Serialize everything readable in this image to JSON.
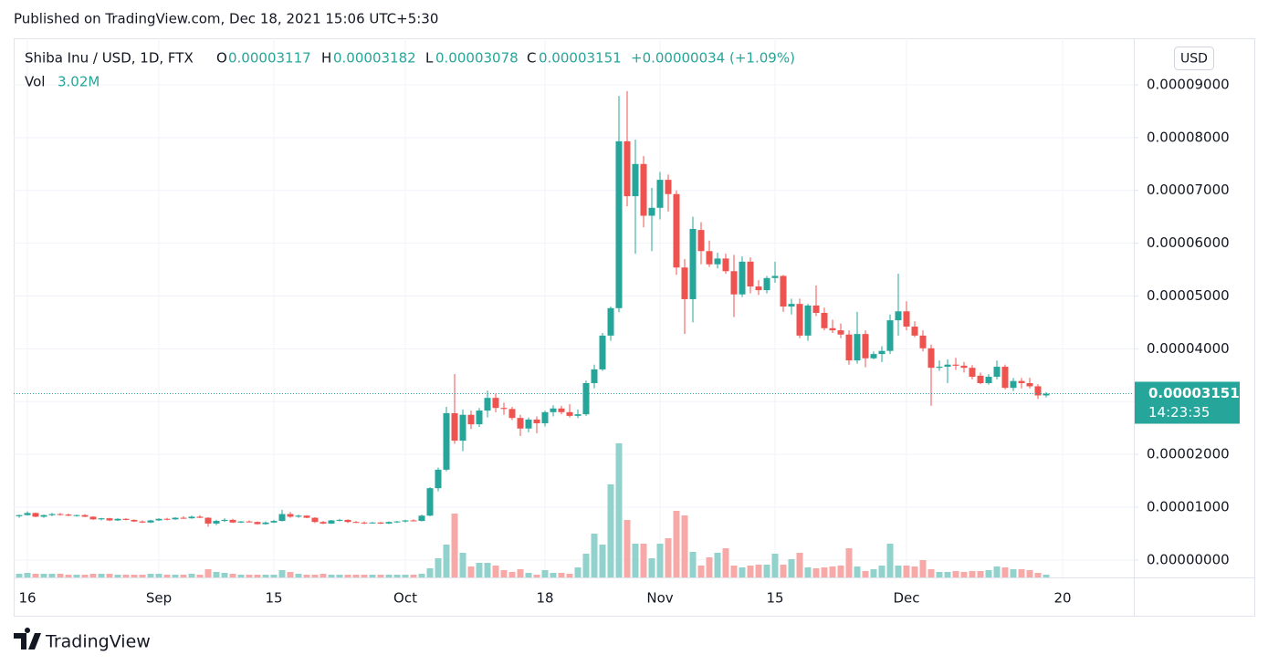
{
  "chart_data": {
    "type": "candlestick",
    "published": "Published on TradingView.com, Dec 18, 2021 15:06 UTC+5:30",
    "brand": "TradingView",
    "currency": "USD",
    "countdown": "14:23:35",
    "legend": {
      "symbol": "Shiba Inu / USD, 1D, FTX",
      "open": "O",
      "high": "H",
      "low": "L",
      "close": "C",
      "change": "+0.00000034 (+1.09%)"
    },
    "up_color": "#26a69a",
    "down_color": "#ef5350",
    "volume_up_color": "#92d2cc",
    "volume_down_color": "#f7a9a7",
    "grid": true,
    "ylim": [
      -3.3e-06,
      9.88e-05
    ],
    "yticks": [
      {
        "value": 0,
        "label": "0.00000000"
      },
      {
        "value": 1e-05,
        "label": "0.00001000"
      },
      {
        "value": 2e-05,
        "label": "0.00002000"
      },
      {
        "value": 3e-05,
        "label": "0.00003000"
      },
      {
        "value": 4e-05,
        "label": "0.00004000"
      },
      {
        "value": 5e-05,
        "label": "0.00005000"
      },
      {
        "value": 6e-05,
        "label": "0.00006000"
      },
      {
        "value": 7e-05,
        "label": "0.00007000"
      },
      {
        "value": 8e-05,
        "label": "0.00008000"
      },
      {
        "value": 9e-05,
        "label": "0.00009000"
      }
    ],
    "xlim": [
      "2021-08-14",
      "2021-12-29"
    ],
    "xticks": [
      {
        "value": "2021-08-16",
        "label": "16"
      },
      {
        "value": "2021-09-01",
        "label": "Sep"
      },
      {
        "value": "2021-09-15",
        "label": "15"
      },
      {
        "value": "2021-10-01",
        "label": "Oct"
      },
      {
        "value": "2021-10-18",
        "label": "18"
      },
      {
        "value": "2021-11-01",
        "label": "Nov"
      },
      {
        "value": "2021-11-15",
        "label": "15"
      },
      {
        "value": "2021-12-01",
        "label": "Dec"
      },
      {
        "value": "2021-12-20",
        "label": "20"
      }
    ],
    "x": [
      "2021-08-15",
      "2021-08-16",
      "2021-08-17",
      "2021-08-18",
      "2021-08-19",
      "2021-08-20",
      "2021-08-21",
      "2021-08-22",
      "2021-08-23",
      "2021-08-24",
      "2021-08-25",
      "2021-08-26",
      "2021-08-27",
      "2021-08-28",
      "2021-08-29",
      "2021-08-30",
      "2021-08-31",
      "2021-09-01",
      "2021-09-02",
      "2021-09-03",
      "2021-09-04",
      "2021-09-05",
      "2021-09-06",
      "2021-09-07",
      "2021-09-08",
      "2021-09-09",
      "2021-09-10",
      "2021-09-11",
      "2021-09-12",
      "2021-09-13",
      "2021-09-14",
      "2021-09-15",
      "2021-09-16",
      "2021-09-17",
      "2021-09-18",
      "2021-09-19",
      "2021-09-20",
      "2021-09-21",
      "2021-09-22",
      "2021-09-23",
      "2021-09-24",
      "2021-09-25",
      "2021-09-26",
      "2021-09-27",
      "2021-09-28",
      "2021-09-29",
      "2021-09-30",
      "2021-10-01",
      "2021-10-02",
      "2021-10-03",
      "2021-10-04",
      "2021-10-05",
      "2021-10-06",
      "2021-10-07",
      "2021-10-08",
      "2021-10-09",
      "2021-10-10",
      "2021-10-11",
      "2021-10-12",
      "2021-10-13",
      "2021-10-14",
      "2021-10-15",
      "2021-10-16",
      "2021-10-17",
      "2021-10-18",
      "2021-10-19",
      "2021-10-20",
      "2021-10-21",
      "2021-10-22",
      "2021-10-23",
      "2021-10-24",
      "2021-10-25",
      "2021-10-26",
      "2021-10-27",
      "2021-10-28",
      "2021-10-29",
      "2021-10-30",
      "2021-10-31",
      "2021-11-01",
      "2021-11-02",
      "2021-11-03",
      "2021-11-04",
      "2021-11-05",
      "2021-11-06",
      "2021-11-07",
      "2021-11-08",
      "2021-11-09",
      "2021-11-10",
      "2021-11-11",
      "2021-11-12",
      "2021-11-13",
      "2021-11-14",
      "2021-11-15",
      "2021-11-16",
      "2021-11-17",
      "2021-11-18",
      "2021-11-19",
      "2021-11-20",
      "2021-11-21",
      "2021-11-22",
      "2021-11-23",
      "2021-11-24",
      "2021-11-25",
      "2021-11-26",
      "2021-11-27",
      "2021-11-28",
      "2021-11-29",
      "2021-11-30",
      "2021-12-01",
      "2021-12-02",
      "2021-12-03",
      "2021-12-04",
      "2021-12-05",
      "2021-12-06",
      "2021-12-07",
      "2021-12-08",
      "2021-12-09",
      "2021-12-10",
      "2021-12-11",
      "2021-12-12",
      "2021-12-13",
      "2021-12-14",
      "2021-12-15",
      "2021-12-16",
      "2021-12-17",
      "2021-12-18"
    ],
    "ohlc": [
      [
        8.3e-06,
        8.6e-06,
        8e-06,
        8.5e-06
      ],
      [
        8.5e-06,
        9.2e-06,
        8.4e-06,
        8.9e-06
      ],
      [
        8.9e-06,
        9e-06,
        8.1e-06,
        8.2e-06
      ],
      [
        8.2e-06,
        8.6e-06,
        8e-06,
        8.5e-06
      ],
      [
        8.5e-06,
        8.9e-06,
        8.3e-06,
        8.7e-06
      ],
      [
        8.7e-06,
        8.9e-06,
        8.4e-06,
        8.6e-06
      ],
      [
        8.6e-06,
        8.8e-06,
        8.3e-06,
        8.4e-06
      ],
      [
        8.4e-06,
        8.6e-06,
        8.2e-06,
        8.5e-06
      ],
      [
        8.5e-06,
        8.7e-06,
        8.1e-06,
        8.2e-06
      ],
      [
        8.2e-06,
        8.3e-06,
        7.6e-06,
        7.7e-06
      ],
      [
        7.7e-06,
        8e-06,
        7.5e-06,
        7.9e-06
      ],
      [
        7.9e-06,
        8e-06,
        7.4e-06,
        7.5e-06
      ],
      [
        7.5e-06,
        7.9e-06,
        7.4e-06,
        7.8e-06
      ],
      [
        7.8e-06,
        7.9e-06,
        7.5e-06,
        7.6e-06
      ],
      [
        7.6e-06,
        7.7e-06,
        7.2e-06,
        7.3e-06
      ],
      [
        7.3e-06,
        7.5e-06,
        7e-06,
        7.1e-06
      ],
      [
        7.1e-06,
        7.6e-06,
        7e-06,
        7.5e-06
      ],
      [
        7.5e-06,
        7.9e-06,
        7.4e-06,
        7.8e-06
      ],
      [
        7.8e-06,
        8e-06,
        7.5e-06,
        7.7e-06
      ],
      [
        7.7e-06,
        8.1e-06,
        7.6e-06,
        8e-06
      ],
      [
        8e-06,
        8.3e-06,
        7.8e-06,
        7.9e-06
      ],
      [
        7.9e-06,
        8.4e-06,
        7.8e-06,
        8.2e-06
      ],
      [
        8.2e-06,
        8.5e-06,
        7.9e-06,
        8e-06
      ],
      [
        8e-06,
        8.1e-06,
        6.3e-06,
        6.9e-06
      ],
      [
        6.9e-06,
        7.6e-06,
        6.6e-06,
        7.4e-06
      ],
      [
        7.4e-06,
        7.9e-06,
        7.2e-06,
        7.6e-06
      ],
      [
        7.6e-06,
        7.8e-06,
        7e-06,
        7.1e-06
      ],
      [
        7.1e-06,
        7.4e-06,
        7e-06,
        7.3e-06
      ],
      [
        7.3e-06,
        7.5e-06,
        7.1e-06,
        7.2e-06
      ],
      [
        7.2e-06,
        7.3e-06,
        6.7e-06,
        6.8e-06
      ],
      [
        6.8e-06,
        7.3e-06,
        6.7e-06,
        7.1e-06
      ],
      [
        7.1e-06,
        7.6e-06,
        7e-06,
        7.4e-06
      ],
      [
        7.4e-06,
        9.5e-06,
        7.3e-06,
        8.7e-06
      ],
      [
        8.7e-06,
        9.1e-06,
        8e-06,
        8.2e-06
      ],
      [
        8.2e-06,
        8.6e-06,
        8e-06,
        8.4e-06
      ],
      [
        8.4e-06,
        8.5e-06,
        7.9e-06,
        8e-06
      ],
      [
        8e-06,
        8.1e-06,
        7e-06,
        7.2e-06
      ],
      [
        7.2e-06,
        7.4e-06,
        6.8e-06,
        6.9e-06
      ],
      [
        6.9e-06,
        7.6e-06,
        6.8e-06,
        7.5e-06
      ],
      [
        7.5e-06,
        7.8e-06,
        7.3e-06,
        7.6e-06
      ],
      [
        7.6e-06,
        7.7e-06,
        7e-06,
        7.2e-06
      ],
      [
        7.2e-06,
        7.4e-06,
        7e-06,
        7.1e-06
      ],
      [
        7.1e-06,
        7.3e-06,
        6.8e-06,
        7e-06
      ],
      [
        7e-06,
        7.2e-06,
        6.9e-06,
        7.1e-06
      ],
      [
        7.1e-06,
        7.2e-06,
        6.8e-06,
        6.9e-06
      ],
      [
        6.9e-06,
        7.3e-06,
        6.8e-06,
        7.2e-06
      ],
      [
        7.2e-06,
        7.4e-06,
        7e-06,
        7.3e-06
      ],
      [
        7.3e-06,
        7.6e-06,
        7.1e-06,
        7.5e-06
      ],
      [
        7.5e-06,
        7.7e-06,
        7.3e-06,
        7.4e-06
      ],
      [
        7.4e-06,
        8.6e-06,
        7.3e-06,
        8.4e-06
      ],
      [
        8.4e-06,
        1.38e-05,
        8.3e-06,
        1.36e-05
      ],
      [
        1.36e-05,
        1.75e-05,
        1.3e-05,
        1.71e-05
      ],
      [
        1.71e-05,
        2.9e-05,
        1.68e-05,
        2.78e-05
      ],
      [
        2.78e-05,
        3.52e-05,
        2.2e-05,
        2.26e-05
      ],
      [
        2.26e-05,
        2.85e-05,
        2.06e-05,
        2.75e-05
      ],
      [
        2.75e-05,
        2.83e-05,
        2.48e-05,
        2.57e-05
      ],
      [
        2.57e-05,
        2.88e-05,
        2.52e-05,
        2.83e-05
      ],
      [
        2.83e-05,
        3.21e-05,
        2.7e-05,
        3.07e-05
      ],
      [
        3.07e-05,
        3.15e-05,
        2.8e-05,
        2.88e-05
      ],
      [
        2.88e-05,
        2.98e-05,
        2.75e-05,
        2.86e-05
      ],
      [
        2.86e-05,
        2.9e-05,
        2.65e-05,
        2.69e-05
      ],
      [
        2.69e-05,
        2.75e-05,
        2.35e-05,
        2.49e-05
      ],
      [
        2.49e-05,
        2.7e-05,
        2.42e-05,
        2.66e-05
      ],
      [
        2.66e-05,
        2.72e-05,
        2.4e-05,
        2.59e-05
      ],
      [
        2.59e-05,
        2.83e-05,
        2.53e-05,
        2.8e-05
      ],
      [
        2.8e-05,
        2.93e-05,
        2.72e-05,
        2.87e-05
      ],
      [
        2.87e-05,
        2.92e-05,
        2.76e-05,
        2.8e-05
      ],
      [
        2.8e-05,
        2.95e-05,
        2.7e-05,
        2.73e-05
      ],
      [
        2.73e-05,
        2.85e-05,
        2.69e-05,
        2.76e-05
      ],
      [
        2.76e-05,
        3.4e-05,
        2.73e-05,
        3.35e-05
      ],
      [
        3.35e-05,
        3.7e-05,
        3.25e-05,
        3.61e-05
      ],
      [
        3.61e-05,
        4.3e-05,
        3.58e-05,
        4.25e-05
      ],
      [
        4.25e-05,
        4.8e-05,
        4.15e-05,
        4.77e-05
      ],
      [
        4.77e-05,
        8.79e-05,
        4.69e-05,
        7.93e-05
      ],
      [
        7.93e-05,
        8.88e-05,
        6.7e-05,
        6.89e-05
      ],
      [
        6.89e-05,
        7.96e-05,
        5.8e-05,
        7.5e-05
      ],
      [
        7.5e-05,
        7.65e-05,
        6.3e-05,
        6.52e-05
      ],
      [
        6.52e-05,
        7.05e-05,
        5.85e-05,
        6.67e-05
      ],
      [
        6.67e-05,
        7.35e-05,
        6.45e-05,
        7.2e-05
      ],
      [
        7.2e-05,
        7.3e-05,
        6.6e-05,
        6.93e-05
      ],
      [
        6.93e-05,
        7e-05,
        5.4e-05,
        5.54e-05
      ],
      [
        5.54e-05,
        5.7e-05,
        4.28e-05,
        4.94e-05
      ],
      [
        4.94e-05,
        6.5e-05,
        4.5e-05,
        6.27e-05
      ],
      [
        6.25e-05,
        6.4e-05,
        5.6e-05,
        5.85e-05
      ],
      [
        5.85e-05,
        6.05e-05,
        5.55e-05,
        5.6e-05
      ],
      [
        5.6e-05,
        5.82e-05,
        5.52e-05,
        5.71e-05
      ],
      [
        5.71e-05,
        5.8e-05,
        5.42e-05,
        5.47e-05
      ],
      [
        5.47e-05,
        5.78e-05,
        4.6e-05,
        5.03e-05
      ],
      [
        5.03e-05,
        5.75e-05,
        4.98e-05,
        5.65e-05
      ],
      [
        5.65e-05,
        5.73e-05,
        5.05e-05,
        5.18e-05
      ],
      [
        5.18e-05,
        5.3e-05,
        5.02e-05,
        5.11e-05
      ],
      [
        5.11e-05,
        5.38e-05,
        5.05e-05,
        5.34e-05
      ],
      [
        5.34e-05,
        5.65e-05,
        5.25e-05,
        5.38e-05
      ],
      [
        5.38e-05,
        5.4e-05,
        4.7e-05,
        4.8e-05
      ],
      [
        4.8e-05,
        4.95e-05,
        4.65e-05,
        4.85e-05
      ],
      [
        4.85e-05,
        4.95e-05,
        4.2e-05,
        4.25e-05
      ],
      [
        4.25e-05,
        4.85e-05,
        4.15e-05,
        4.82e-05
      ],
      [
        4.82e-05,
        5.2e-05,
        4.62e-05,
        4.68e-05
      ],
      [
        4.68e-05,
        4.78e-05,
        4.35e-05,
        4.39e-05
      ],
      [
        4.39e-05,
        4.55e-05,
        4.3e-05,
        4.35e-05
      ],
      [
        4.35e-05,
        4.48e-05,
        4.2e-05,
        4.27e-05
      ],
      [
        4.27e-05,
        4.35e-05,
        3.7e-05,
        3.78e-05
      ],
      [
        3.78e-05,
        4.7e-05,
        3.72e-05,
        4.28e-05
      ],
      [
        4.28e-05,
        4.35e-05,
        3.65e-05,
        3.82e-05
      ],
      [
        3.82e-05,
        3.95e-05,
        3.8e-05,
        3.9e-05
      ],
      [
        3.9e-05,
        4.05e-05,
        3.75e-05,
        3.96e-05
      ],
      [
        3.96e-05,
        4.65e-05,
        3.9e-05,
        4.54e-05
      ],
      [
        4.54e-05,
        5.42e-05,
        4.25e-05,
        4.71e-05
      ],
      [
        4.71e-05,
        4.9e-05,
        4.35e-05,
        4.42e-05
      ],
      [
        4.42e-05,
        4.52e-05,
        4.22e-05,
        4.25e-05
      ],
      [
        4.25e-05,
        4.35e-05,
        3.95e-05,
        4.01e-05
      ],
      [
        4.01e-05,
        4.08e-05,
        2.92e-05,
        3.64e-05
      ],
      [
        3.64e-05,
        3.78e-05,
        3.58e-05,
        3.66e-05
      ],
      [
        3.66e-05,
        3.8e-05,
        3.35e-05,
        3.7e-05
      ],
      [
        3.7e-05,
        3.83e-05,
        3.6e-05,
        3.68e-05
      ],
      [
        3.68e-05,
        3.75e-05,
        3.55e-05,
        3.64e-05
      ],
      [
        3.64e-05,
        3.69e-05,
        3.42e-05,
        3.47e-05
      ],
      [
        3.49e-05,
        3.55e-05,
        3.33e-05,
        3.35e-05
      ],
      [
        3.35e-05,
        3.52e-05,
        3.32e-05,
        3.47e-05
      ],
      [
        3.47e-05,
        3.78e-05,
        3.42e-05,
        3.66e-05
      ],
      [
        3.66e-05,
        3.7e-05,
        3.23e-05,
        3.26e-05
      ],
      [
        3.26e-05,
        3.45e-05,
        3.2e-05,
        3.39e-05
      ],
      [
        3.39e-05,
        3.45e-05,
        3.25e-05,
        3.35e-05
      ],
      [
        3.35e-05,
        3.45e-05,
        3.25e-05,
        3.29e-05
      ],
      [
        3.29e-05,
        3.33e-05,
        3.05e-05,
        3.117e-05
      ],
      [
        3.117e-05,
        3.182e-05,
        3.078e-05,
        3.151e-05
      ]
    ],
    "volume": {
      "name": "Vol",
      "last_label": "3.02M",
      "ylim": [
        0,
        591000000.0
      ],
      "values": [
        4000000.0,
        5000000.0,
        4000000.0,
        4000000.0,
        4000000.0,
        4000000.0,
        3000000.0,
        3000000.0,
        3000000.0,
        4000000.0,
        4000000.0,
        4000000.0,
        3000000.0,
        3000000.0,
        3000000.0,
        3000000.0,
        4000000.0,
        4000000.0,
        3000000.0,
        3000000.0,
        3000000.0,
        4000000.0,
        3000000.0,
        9000000.0,
        6000000.0,
        5000000.0,
        4000000.0,
        3000000.0,
        3000000.0,
        3000000.0,
        3000000.0,
        3000000.0,
        8000000.0,
        6000000.0,
        4000000.0,
        3000000.0,
        3000000.0,
        4000000.0,
        3000000.0,
        3000000.0,
        3000000.0,
        3000000.0,
        3000000.0,
        3000000.0,
        3000000.0,
        3000000.0,
        3000000.0,
        3000000.0,
        3000000.0,
        4000000.0,
        10000000.0,
        21000000.0,
        36000000.0,
        70000000.0,
        27000000.0,
        12000000.0,
        16000000.0,
        16000000.0,
        13000000.0,
        8000000.0,
        6000000.0,
        9000000.0,
        5000000.0,
        3000000.0,
        8000000.0,
        5000000.0,
        5000000.0,
        4000000.0,
        11000000.0,
        26000000.0,
        48000000.0,
        36000000.0,
        102000000.0,
        147000000.0,
        63000000.0,
        37000000.0,
        37000000.0,
        21000000.0,
        37000000.0,
        43000000.0,
        73000000.0,
        68000000.0,
        28000000.0,
        13000000.0,
        22000000.0,
        27000000.0,
        32000000.0,
        13000000.0,
        11000000.0,
        13000000.0,
        14000000.0,
        14000000.0,
        26000000.0,
        14000000.0,
        20000000.0,
        27000000.0,
        11000000.0,
        10000000.0,
        11000000.0,
        12000000.0,
        13000000.0,
        32000000.0,
        12000000.0,
        7000000.0,
        9000000.0,
        13000000.0,
        37000000.0,
        13000000.0,
        13000000.0,
        12000000.0,
        19000000.0,
        9000000.0,
        6000000.0,
        6000000.0,
        7000000.0,
        6000000.0,
        7000000.0,
        7000000.0,
        8000000.0,
        12000000.0,
        11000000.0,
        9000000.0,
        9000000.0,
        8000000.0,
        5000000.0,
        3020000.0
      ]
    }
  }
}
